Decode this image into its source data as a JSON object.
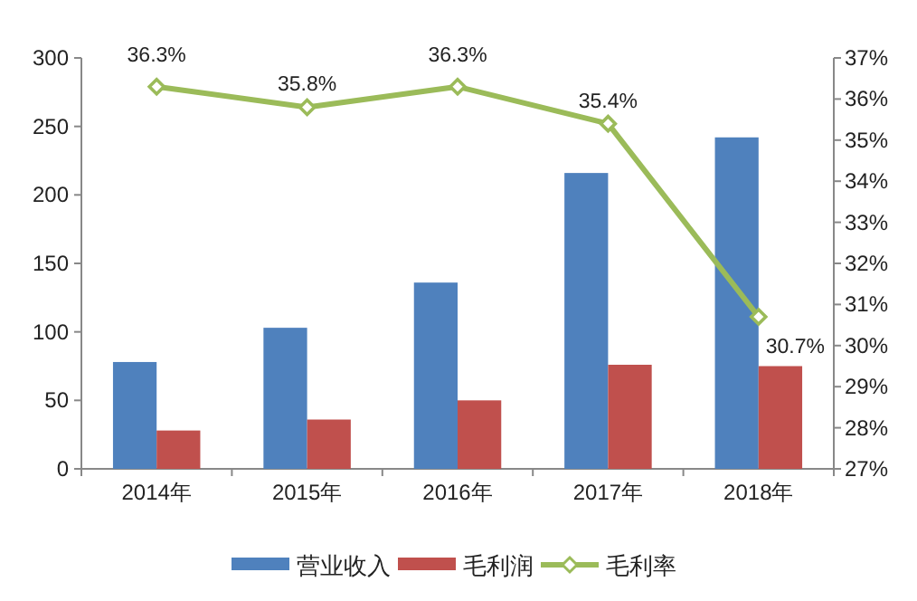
{
  "chart_data": {
    "type": "bar",
    "categories": [
      "2014年",
      "2015年",
      "2016年",
      "2017年",
      "2018年"
    ],
    "series": [
      {
        "name": "营业收入",
        "color": "#4f81bd",
        "values": [
          78,
          103,
          136,
          216,
          242
        ]
      },
      {
        "name": "毛利润",
        "color": "#c0504d",
        "values": [
          28,
          36,
          50,
          76,
          75
        ]
      },
      {
        "name": "毛利率",
        "type": "line",
        "axis": "y2",
        "color": "#9bbb59",
        "marker": "diamond",
        "values": [
          36.3,
          35.8,
          36.3,
          35.4,
          30.7
        ],
        "value_labels": [
          "36.3%",
          "35.8%",
          "36.3%",
          "35.4%",
          "30.7%"
        ]
      }
    ],
    "ylim": [
      0,
      300
    ],
    "yticks": [
      0,
      50,
      100,
      150,
      200,
      250,
      300
    ],
    "y2lim": [
      27,
      37
    ],
    "y2ticks": [
      {
        "value": 27,
        "label": "27%"
      },
      {
        "value": 28,
        "label": "28%"
      },
      {
        "value": 29,
        "label": "29%"
      },
      {
        "value": 30,
        "label": "30%"
      },
      {
        "value": 31,
        "label": "31%"
      },
      {
        "value": 32,
        "label": "32%"
      },
      {
        "value": 33,
        "label": "33%"
      },
      {
        "value": 34,
        "label": "34%"
      },
      {
        "value": 35,
        "label": "35%"
      },
      {
        "value": 36,
        "label": "36%"
      },
      {
        "value": 37,
        "label": "37%"
      }
    ],
    "grid": false,
    "legend": "bottom"
  }
}
